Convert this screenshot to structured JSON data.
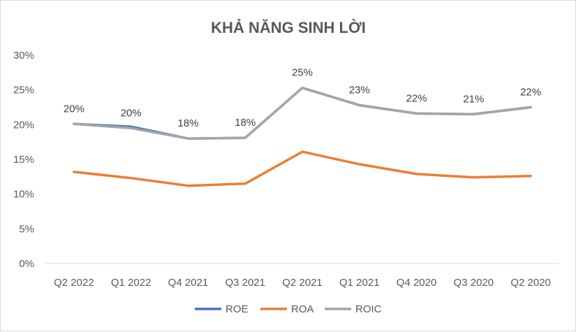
{
  "chart_data": {
    "type": "line",
    "title": "KHẢ NĂNG SINH LỜI",
    "categories": [
      "Q2 2022",
      "Q1 2022",
      "Q4 2021",
      "Q3 2021",
      "Q2 2021",
      "Q1 2021",
      "Q4 2020",
      "Q3 2020",
      "Q2 2020"
    ],
    "ylim": [
      0,
      0.3
    ],
    "yticks": [
      0,
      0.05,
      0.1,
      0.15,
      0.2,
      0.25,
      0.3
    ],
    "ytick_labels": [
      "0%",
      "5%",
      "10%",
      "15%",
      "20%",
      "25%",
      "30%"
    ],
    "grid": false,
    "legend_position": "bottom",
    "series": [
      {
        "name": "ROE",
        "color": "#4472c4",
        "values": [
          0.201,
          0.197,
          0.18,
          0.181,
          0.253,
          0.228,
          0.216,
          0.215,
          0.225
        ]
      },
      {
        "name": "ROA",
        "color": "#ed7d31",
        "values": [
          0.132,
          0.123,
          0.112,
          0.115,
          0.161,
          0.143,
          0.129,
          0.124,
          0.126
        ]
      },
      {
        "name": "ROIC",
        "color": "#a5a5a5",
        "values": [
          0.201,
          0.195,
          0.18,
          0.181,
          0.253,
          0.228,
          0.216,
          0.215,
          0.225
        ]
      }
    ],
    "data_labels": {
      "series": "ROIC",
      "labels": [
        "20%",
        "20%",
        "18%",
        "18%",
        "25%",
        "23%",
        "22%",
        "21%",
        "22%"
      ]
    }
  }
}
